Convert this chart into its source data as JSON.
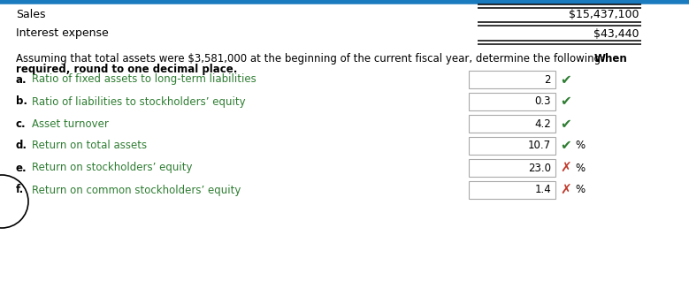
{
  "bg_color": "#ffffff",
  "top_border_color": "#1a7bbf",
  "sales_label": "Sales",
  "sales_value": "$15,437,100",
  "interest_label": "Interest expense",
  "interest_value": "$43,440",
  "instruction_normal": "Assuming that total assets were $3,581,000 at the beginning of the current fiscal year, determine the following: ",
  "instruction_bold_end": "When",
  "instruction_line2": "required, round to one decimal place.",
  "items": [
    {
      "letter": "a.",
      "label": "Ratio of fixed assets to long-term liabilities",
      "value": "2",
      "symbol": "✔",
      "symbol_color": "#2e7d32",
      "suffix": ""
    },
    {
      "letter": "b.",
      "label": "Ratio of liabilities to stockholders’ equity",
      "value": "0.3",
      "symbol": "✔",
      "symbol_color": "#2e7d32",
      "suffix": ""
    },
    {
      "letter": "c.",
      "label": "Asset turnover",
      "value": "4.2",
      "symbol": "✔",
      "symbol_color": "#2e7d32",
      "suffix": ""
    },
    {
      "letter": "d.",
      "label": "Return on total assets",
      "value": "10.7",
      "symbol": "✔",
      "symbol_color": "#2e7d32",
      "suffix": "%"
    },
    {
      "letter": "e.",
      "label": "Return on stockholders’ equity",
      "value": "23.0",
      "symbol": "✗",
      "symbol_color": "#c0392b",
      "suffix": "%"
    },
    {
      "letter": "f.",
      "label": "Return on common stockholders’ equity",
      "value": "1.4",
      "symbol": "✗",
      "symbol_color": "#c0392b",
      "suffix": "%"
    }
  ],
  "label_color": "#2e7d32",
  "letter_color": "#000000",
  "value_color": "#000000",
  "box_edge_color": "#aaaaaa",
  "double_line_color": "#000000",
  "dpi": 100,
  "fig_w": 7.79,
  "fig_h": 3.18
}
